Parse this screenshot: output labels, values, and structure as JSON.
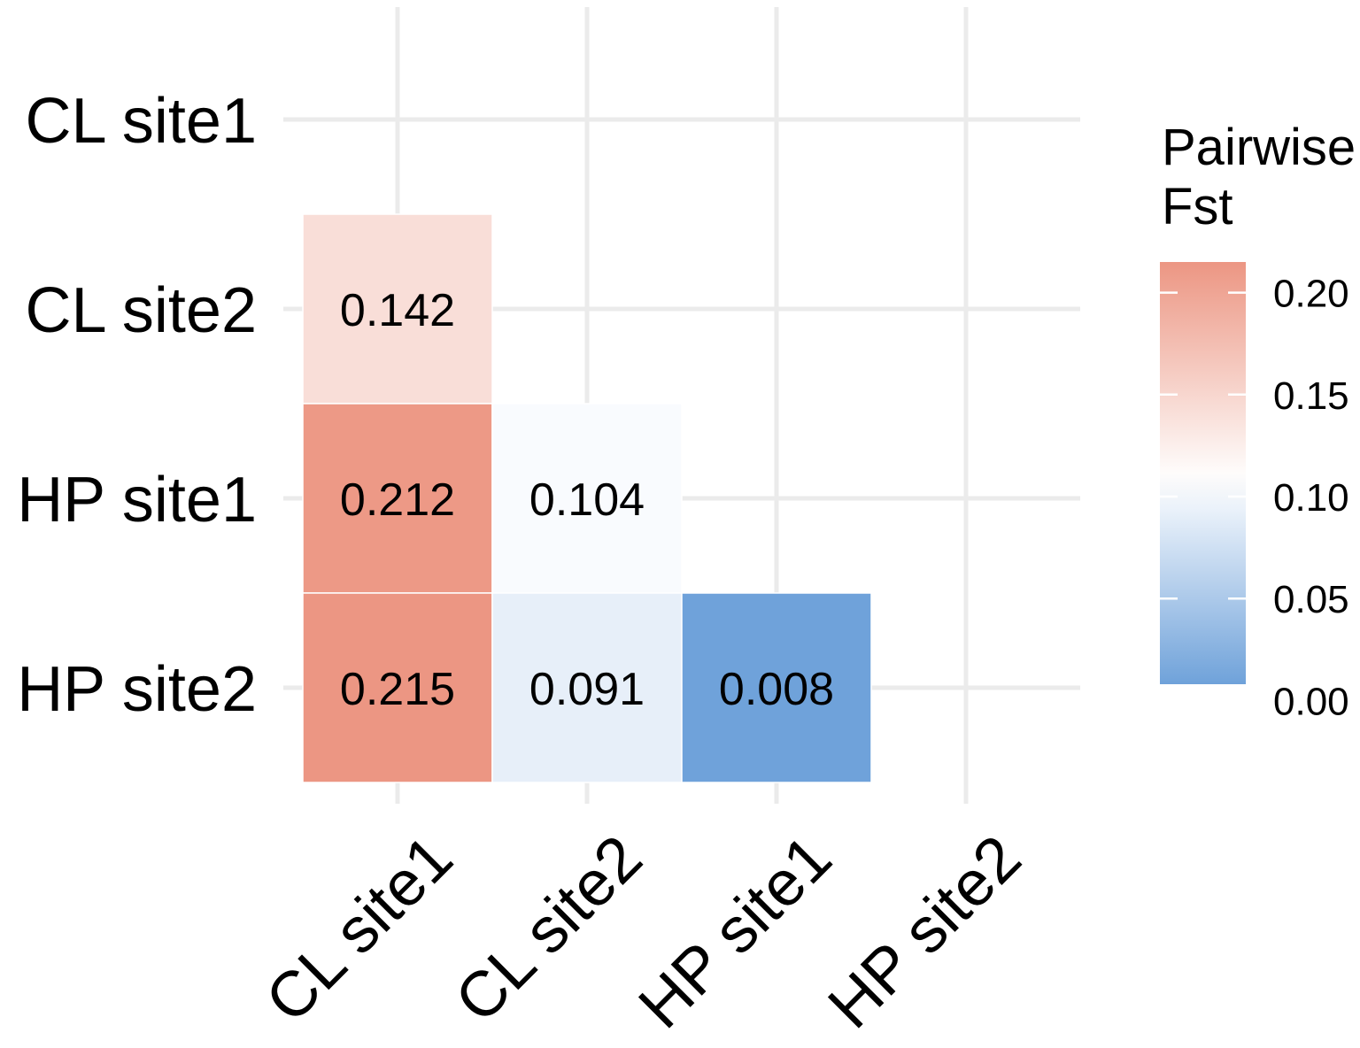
{
  "chart_data": {
    "type": "heatmap",
    "title": "",
    "xlabel": "",
    "ylabel": "",
    "x_categories": [
      "CL site1",
      "CL site2",
      "HP site1",
      "HP site2"
    ],
    "y_categories": [
      "CL site1",
      "CL site2",
      "HP site1",
      "HP site2"
    ],
    "cells": [
      {
        "x": "CL site1",
        "y": "CL site2",
        "value": 0.142,
        "label": "0.142"
      },
      {
        "x": "CL site1",
        "y": "HP site1",
        "value": 0.212,
        "label": "0.212"
      },
      {
        "x": "CL site2",
        "y": "HP site1",
        "value": 0.104,
        "label": "0.104"
      },
      {
        "x": "CL site1",
        "y": "HP site2",
        "value": 0.215,
        "label": "0.215"
      },
      {
        "x": "CL site2",
        "y": "HP site2",
        "value": 0.091,
        "label": "0.091"
      },
      {
        "x": "HP site1",
        "y": "HP site2",
        "value": 0.008,
        "label": "0.008"
      }
    ],
    "grid": true,
    "legend": {
      "title_lines": [
        "Pairwise",
        "Fst"
      ],
      "position": "right",
      "range": [
        0.008,
        0.215
      ],
      "ticks": [
        0.0,
        0.05,
        0.1,
        0.15,
        0.2
      ],
      "tick_labels": [
        "0.00",
        "0.05",
        "0.10",
        "0.15",
        "0.20"
      ],
      "colors": {
        "low": "#6fa2da",
        "mid": "#ffffff",
        "high": "#ec9683",
        "midpoint": 0.108
      }
    }
  }
}
